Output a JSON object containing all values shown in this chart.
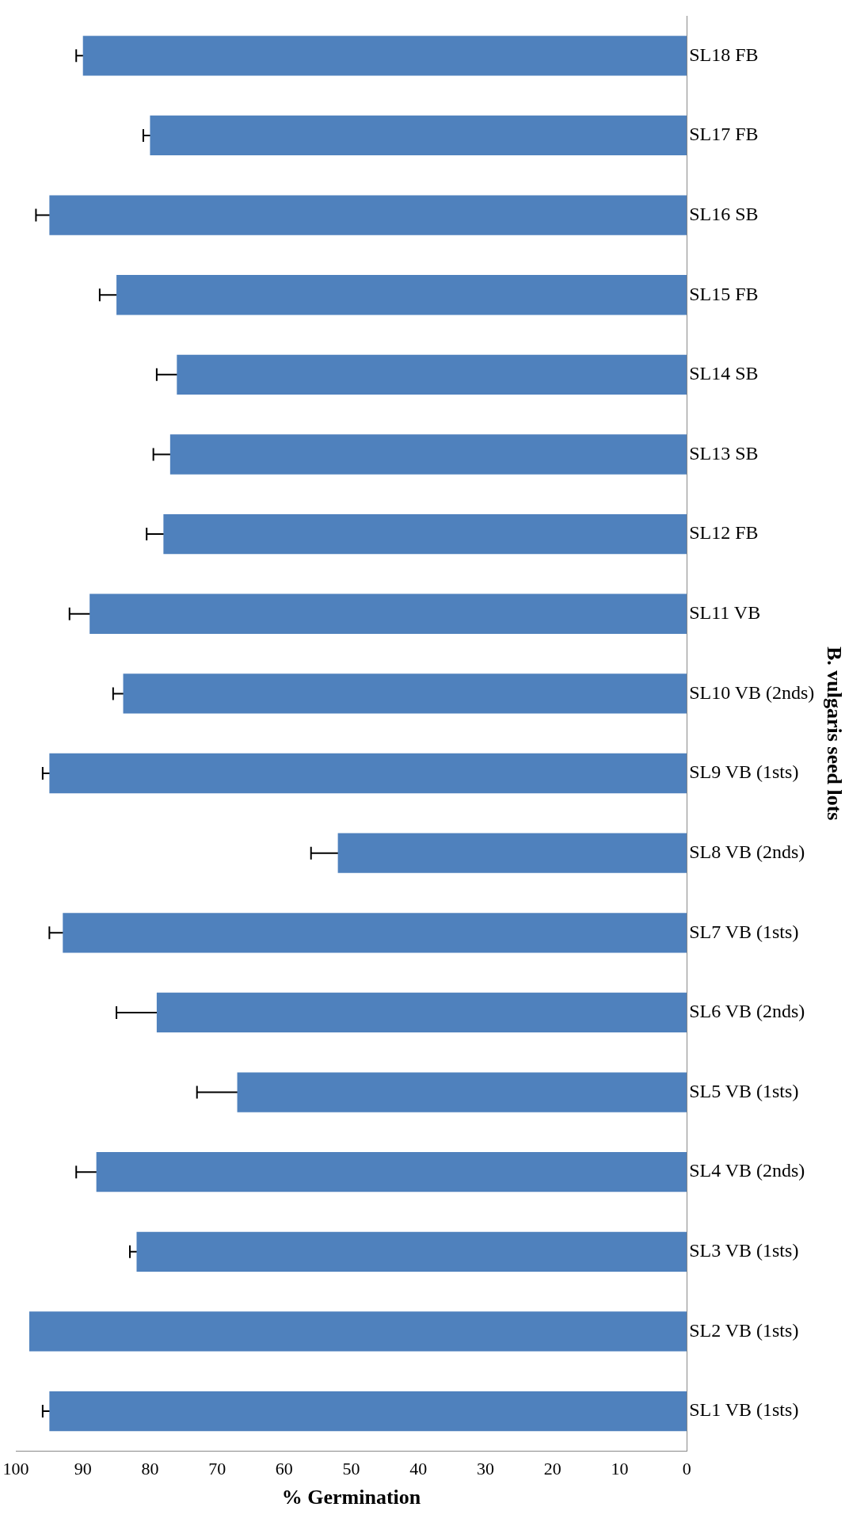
{
  "chart_data": {
    "type": "bar",
    "orientation": "horizontal",
    "xlabel": "% Germination",
    "ylabel": "B. vulgaris seed lots",
    "categories": [
      "SL18 FB",
      "SL17 FB",
      "SL16 SB",
      "SL15 FB",
      "SL14 SB",
      "SL13 SB",
      "SL12 FB",
      "SL11 VB",
      "SL10 VB (2nds)",
      "SL9 VB (1sts)",
      "SL8 VB (2nds)",
      "SL7 VB (1sts)",
      "SL6 VB (2nds)",
      "SL5 VB (1sts)",
      "SL4 VB (2nds)",
      "SL3 VB (1sts)",
      "SL2 VB (1sts)",
      "SL1 VB (1sts)"
    ],
    "values": [
      90,
      80,
      95,
      85,
      76,
      77,
      78,
      89,
      84,
      95,
      52,
      93,
      79,
      67,
      88,
      82,
      98,
      95
    ],
    "errors": [
      1,
      1,
      2,
      2.5,
      3,
      2.5,
      2.5,
      3,
      1.5,
      1,
      4,
      2,
      6,
      6,
      3,
      1,
      null,
      1
    ],
    "color": "#4f81bd",
    "xlim": [
      100,
      0
    ],
    "xticks": [
      100,
      90,
      80,
      70,
      60,
      50,
      40,
      30,
      20,
      10,
      0
    ],
    "grid": false,
    "legend": false
  }
}
